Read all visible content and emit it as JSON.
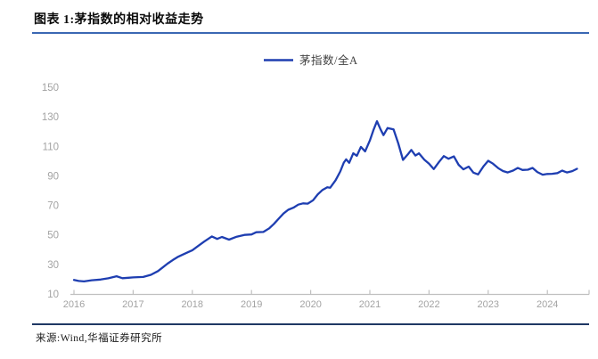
{
  "header": {
    "title": "图表 1:茅指数的相对收益走势"
  },
  "footer": {
    "source": "来源:Wind,华福证券研究所"
  },
  "colors": {
    "line": "#1e3eb1",
    "title_rule": "#3a68b3",
    "footer_rule": "#1f3864",
    "axis": "#c0c0c0",
    "tick_label": "#a3a3a3",
    "legend_text": "#404040",
    "title_text": "#0a0a0a",
    "source_text": "#1a1a1a"
  },
  "chart_data": {
    "type": "line",
    "title": "",
    "xlabel": "",
    "ylabel": "",
    "grid": false,
    "legend_position": "top-center",
    "ylim": [
      10,
      150
    ],
    "xlim": [
      2016,
      2024.75
    ],
    "yticks": [
      10,
      30,
      50,
      70,
      90,
      110,
      130,
      150
    ],
    "xticks": [
      2016,
      2017,
      2018,
      2019,
      2020,
      2021,
      2022,
      2023,
      2024
    ],
    "series": [
      {
        "name": "茅指数/全A",
        "x": [
          2016.0,
          2016.08,
          2016.17,
          2016.3,
          2016.45,
          2016.58,
          2016.72,
          2016.82,
          2016.92,
          2017.0,
          2017.17,
          2017.3,
          2017.42,
          2017.5,
          2017.58,
          2017.67,
          2017.75,
          2017.83,
          2017.92,
          2018.0,
          2018.1,
          2018.2,
          2018.33,
          2018.42,
          2018.5,
          2018.62,
          2018.75,
          2018.88,
          2019.0,
          2019.08,
          2019.2,
          2019.3,
          2019.38,
          2019.46,
          2019.54,
          2019.62,
          2019.71,
          2019.79,
          2019.87,
          2019.95,
          2020.04,
          2020.12,
          2020.2,
          2020.28,
          2020.33,
          2020.42,
          2020.5,
          2020.56,
          2020.6,
          2020.65,
          2020.72,
          2020.78,
          2020.85,
          2020.92,
          2021.0,
          2021.06,
          2021.12,
          2021.18,
          2021.23,
          2021.3,
          2021.4,
          2021.48,
          2021.56,
          2021.64,
          2021.7,
          2021.77,
          2021.83,
          2021.92,
          2022.0,
          2022.08,
          2022.17,
          2022.25,
          2022.33,
          2022.42,
          2022.5,
          2022.58,
          2022.67,
          2022.75,
          2022.83,
          2022.92,
          2023.0,
          2023.08,
          2023.17,
          2023.25,
          2023.33,
          2023.42,
          2023.5,
          2023.58,
          2023.67,
          2023.75,
          2023.83,
          2023.92,
          2024.0,
          2024.08,
          2024.17,
          2024.25,
          2024.33,
          2024.42,
          2024.5
        ],
        "y": [
          19.5,
          18.8,
          18.5,
          19.3,
          19.8,
          20.6,
          22.0,
          20.7,
          21.0,
          21.2,
          21.5,
          23.0,
          25.5,
          28.0,
          30.5,
          33.0,
          35.0,
          36.5,
          38.2,
          39.6,
          42.5,
          45.5,
          49.0,
          47.3,
          48.6,
          46.8,
          48.8,
          50.0,
          50.3,
          51.8,
          52.0,
          54.5,
          57.5,
          61.0,
          64.5,
          67.0,
          68.5,
          70.5,
          71.4,
          71.2,
          73.5,
          77.5,
          80.5,
          82.3,
          82.0,
          87.0,
          93.0,
          99.0,
          101.2,
          98.8,
          105.3,
          103.6,
          109.6,
          106.6,
          114.0,
          121.0,
          127.0,
          121.5,
          117.6,
          122.4,
          121.5,
          112.0,
          100.8,
          104.5,
          107.6,
          103.8,
          105.3,
          101.0,
          98.3,
          94.6,
          99.5,
          103.4,
          101.6,
          103.2,
          97.5,
          94.4,
          96.3,
          92.2,
          91.0,
          96.5,
          100.2,
          98.3,
          95.2,
          93.3,
          92.3,
          93.6,
          95.4,
          94.0,
          94.2,
          95.4,
          92.6,
          90.8,
          91.3,
          91.4,
          91.9,
          93.6,
          92.3,
          93.2,
          94.8
        ]
      }
    ]
  }
}
